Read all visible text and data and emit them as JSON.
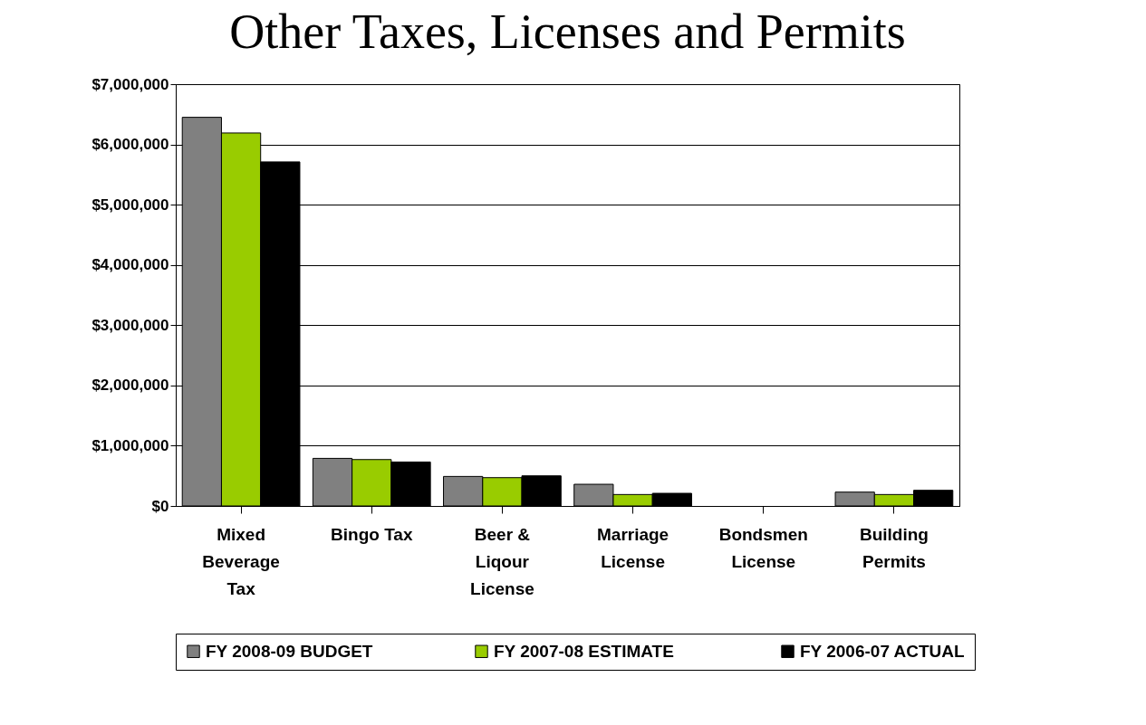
{
  "chart_data": {
    "type": "bar",
    "title": "Other Taxes, Licenses and Permits",
    "categories": [
      "Mixed Beverage Tax",
      "Bingo Tax",
      "Beer & Liqour License",
      "Marriage License",
      "Bondsmen License",
      "Building Permits"
    ],
    "series": [
      {
        "name": "FY 2008-09 BUDGET",
        "color": "#808080",
        "values": [
          6450000,
          790000,
          490000,
          360000,
          0,
          230000
        ]
      },
      {
        "name": "FY 2007-08  ESTIMATE",
        "color": "#99cc00",
        "values": [
          6190000,
          770000,
          470000,
          190000,
          0,
          190000
        ]
      },
      {
        "name": "FY 2006-07 ACTUAL",
        "color": "#000000",
        "values": [
          5710000,
          730000,
          500000,
          210000,
          0,
          260000
        ]
      }
    ],
    "ylim": [
      0,
      7000000
    ],
    "yticks": [
      {
        "value": 0,
        "label": "$0"
      },
      {
        "value": 1000000,
        "label": "$1,000,000"
      },
      {
        "value": 2000000,
        "label": "$2,000,000"
      },
      {
        "value": 3000000,
        "label": "$3,000,000"
      },
      {
        "value": 4000000,
        "label": "$4,000,000"
      },
      {
        "value": 5000000,
        "label": "$5,000,000"
      },
      {
        "value": 6000000,
        "label": "$6,000,000"
      },
      {
        "value": 7000000,
        "label": "$7,000,000"
      }
    ],
    "grid": "y",
    "legend": "bottom"
  }
}
